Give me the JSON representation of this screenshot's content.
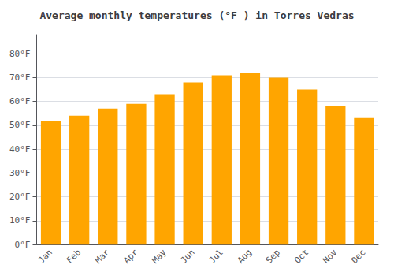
{
  "chart_data": {
    "type": "bar",
    "title": "Average monthly temperatures (°F ) in Torres Vedras",
    "categories": [
      "Jan",
      "Feb",
      "Mar",
      "Apr",
      "May",
      "Jun",
      "Jul",
      "Aug",
      "Sep",
      "Oct",
      "Nov",
      "Dec"
    ],
    "values": [
      52,
      54,
      57,
      59,
      63,
      68,
      71,
      72,
      70,
      65,
      58,
      53
    ],
    "color": "#FFA500",
    "ylim": [
      0,
      88
    ],
    "yticks": [
      {
        "value": 0,
        "label": "0°F"
      },
      {
        "value": 10,
        "label": "10°F"
      },
      {
        "value": 20,
        "label": "20°F"
      },
      {
        "value": 30,
        "label": "30°F"
      },
      {
        "value": 40,
        "label": "40°F"
      },
      {
        "value": 50,
        "label": "50°F"
      },
      {
        "value": 60,
        "label": "60°F"
      },
      {
        "value": 70,
        "label": "70°F"
      },
      {
        "value": 80,
        "label": "80°F"
      }
    ],
    "grid": true
  }
}
